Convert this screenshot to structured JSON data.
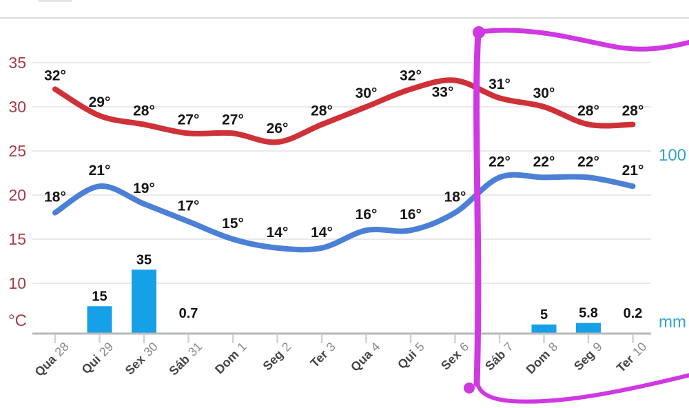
{
  "chart_data": {
    "type": "combo (smoothed temperature lines + precipitation bars, 14-day weather forecast)",
    "categories": [
      "Qua 28",
      "Qui 29",
      "Sex 30",
      "Sáb 31",
      "Dom 1",
      "Seg 2",
      "Ter 3",
      "Qua 4",
      "Qui 5",
      "Sex 6",
      "Sáb 7",
      "Dom 8",
      "Seg 9",
      "Ter 10"
    ],
    "series": [
      {
        "name": "max-temp",
        "type": "line",
        "unit": "°C",
        "color": "#ce3238",
        "values": [
          32,
          29,
          28,
          27,
          27,
          26,
          28,
          30,
          32,
          33,
          31,
          30,
          28,
          28
        ]
      },
      {
        "name": "min-temp",
        "type": "line",
        "unit": "°C",
        "color": "#4c80d7",
        "values": [
          18,
          21,
          19,
          17,
          15,
          14,
          14,
          16,
          16,
          18,
          22,
          22,
          22,
          21
        ]
      },
      {
        "name": "precipitation",
        "type": "bar",
        "unit": "mm",
        "color": "#16a0e8",
        "values": [
          null,
          15,
          35,
          0.7,
          null,
          null,
          null,
          null,
          null,
          null,
          null,
          5,
          5.8,
          0.2
        ]
      }
    ],
    "left_axis": {
      "unit_label": "°C",
      "ticks": [
        "35",
        "30",
        "25",
        "20",
        "15",
        "10"
      ],
      "tick_values": [
        35,
        30,
        25,
        20,
        15,
        10
      ],
      "color": "#a63c46"
    },
    "right_axis": {
      "unit_label": "mm",
      "max_label": "100",
      "max_value": 100,
      "color": "#34a2c9"
    },
    "grid": true,
    "legend_position": "none",
    "annotation": {
      "shape": "hand-drawn open rectangle highlight",
      "color": "#d038e2",
      "highlights": "Sáb 7 through Ter 10"
    }
  },
  "decor": {
    "top_divider_color": "#dcdcdc",
    "fragment_color": "#e4e4e4"
  }
}
